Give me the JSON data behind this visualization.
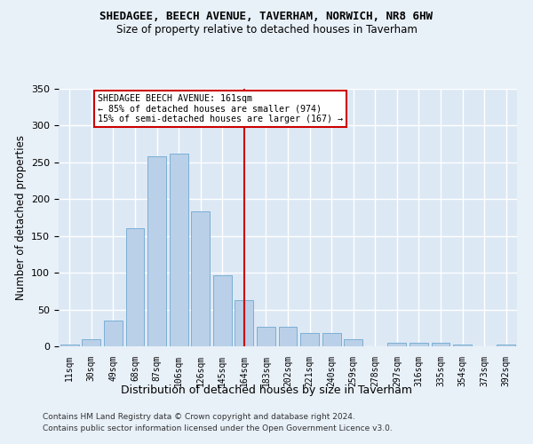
{
  "title": "SHEDAGEE, BEECH AVENUE, TAVERHAM, NORWICH, NR8 6HW",
  "subtitle": "Size of property relative to detached houses in Taverham",
  "xlabel": "Distribution of detached houses by size in Taverham",
  "ylabel": "Number of detached properties",
  "categories": [
    "11sqm",
    "30sqm",
    "49sqm",
    "68sqm",
    "87sqm",
    "106sqm",
    "126sqm",
    "145sqm",
    "164sqm",
    "183sqm",
    "202sqm",
    "221sqm",
    "240sqm",
    "259sqm",
    "278sqm",
    "297sqm",
    "316sqm",
    "335sqm",
    "354sqm",
    "373sqm",
    "392sqm"
  ],
  "values": [
    2,
    10,
    35,
    160,
    258,
    262,
    184,
    97,
    63,
    27,
    27,
    18,
    18,
    10,
    0,
    5,
    5,
    5,
    3,
    0,
    3
  ],
  "bar_color": "#bad0e8",
  "bar_edge_color": "#7aafd4",
  "vline_x": 8,
  "vline_color": "#cc0000",
  "annotation_text": "SHEDAGEE BEECH AVENUE: 161sqm\n← 85% of detached houses are smaller (974)\n15% of semi-detached houses are larger (167) →",
  "annotation_box_color": "#cc0000",
  "background_color": "#dde8f5",
  "fig_background_color": "#e8f0f8",
  "grid_color": "#ffffff",
  "ylim": [
    0,
    350
  ],
  "yticks": [
    0,
    50,
    100,
    150,
    200,
    250,
    300,
    350
  ],
  "footer_line1": "Contains HM Land Registry data © Crown copyright and database right 2024.",
  "footer_line2": "Contains public sector information licensed under the Open Government Licence v3.0."
}
